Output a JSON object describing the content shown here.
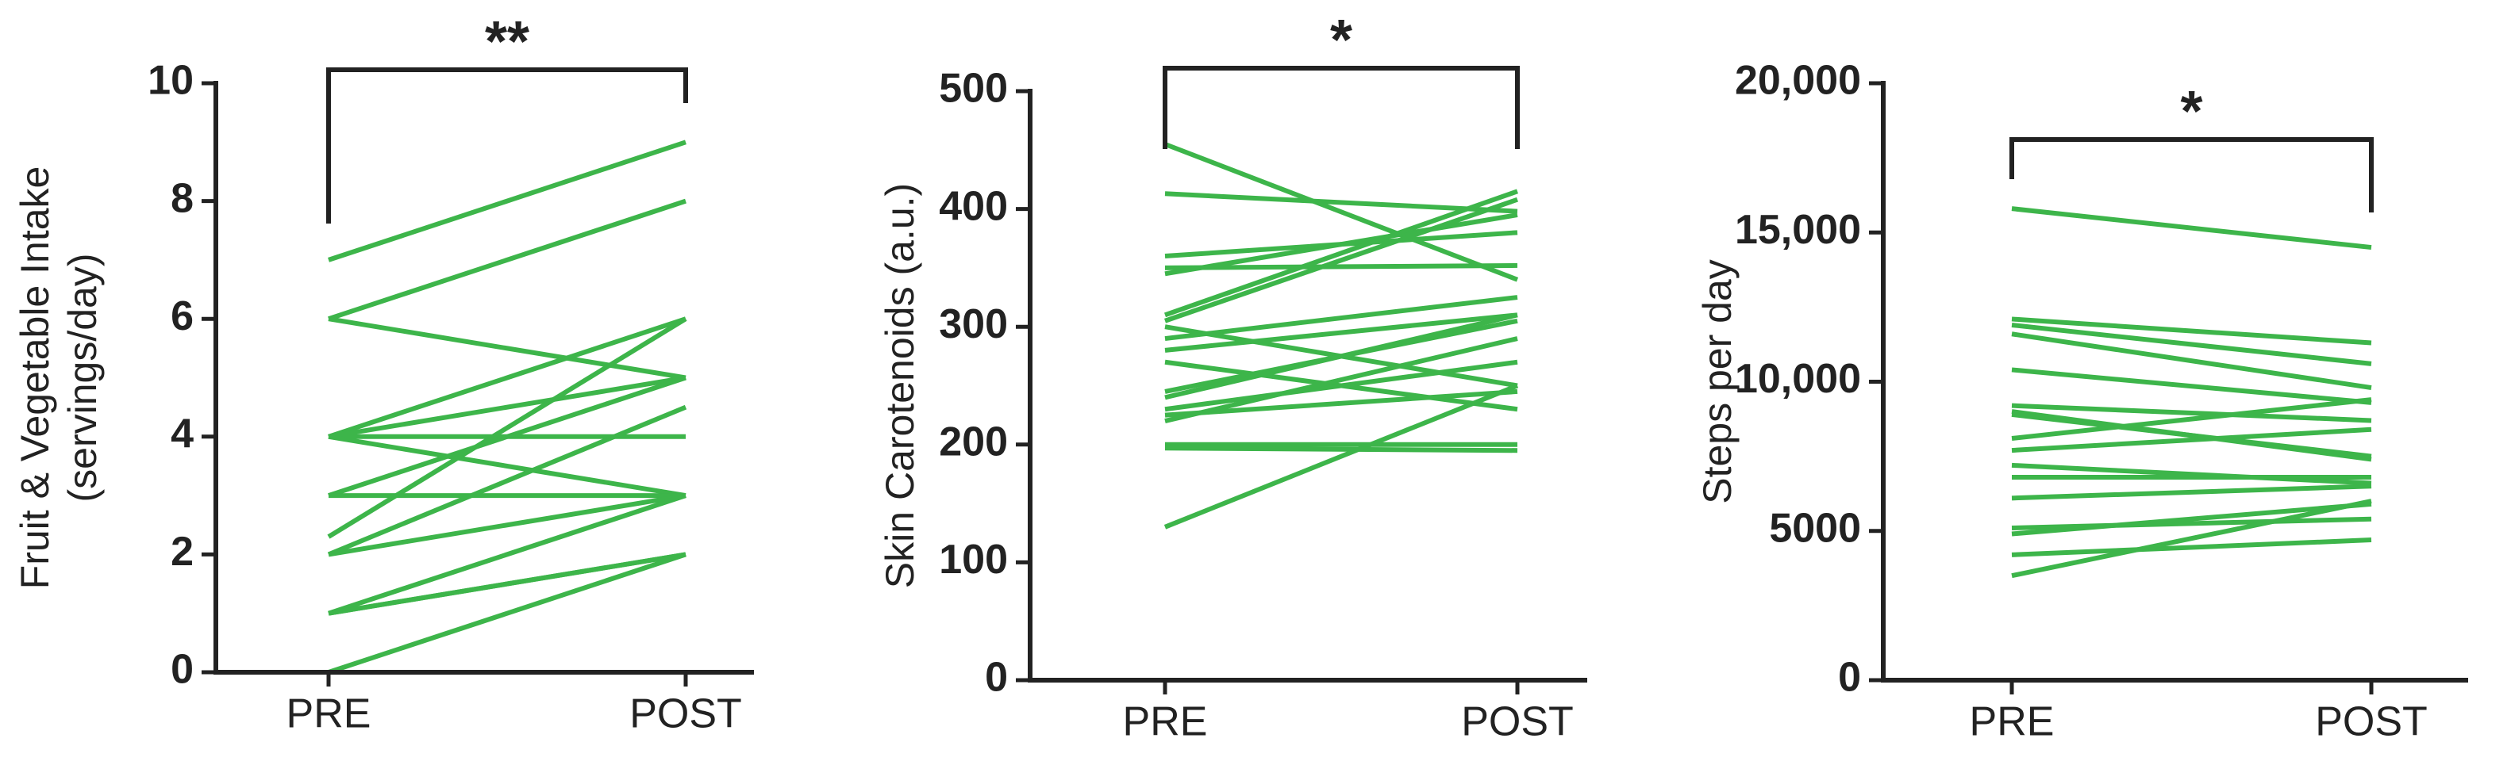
{
  "chart_data": [
    {
      "type": "paired",
      "y_label": [
        "Fruit & Vegetable Intake",
        "(servings/day)"
      ],
      "annotation": "**",
      "categories": [
        "PRE",
        "POST"
      ],
      "color": "#3db54a",
      "ylim": [
        0,
        10
      ],
      "yticks": [
        0,
        2,
        4,
        6,
        8,
        10
      ],
      "series": [
        {
          "values": [
            7,
            9
          ]
        },
        {
          "values": [
            6,
            8
          ]
        },
        {
          "values": [
            6,
            5
          ]
        },
        {
          "values": [
            4,
            6
          ]
        },
        {
          "values": [
            4,
            5
          ]
        },
        {
          "values": [
            4,
            4
          ]
        },
        {
          "values": [
            4,
            3
          ]
        },
        {
          "values": [
            3,
            5
          ]
        },
        {
          "values": [
            3,
            3
          ]
        },
        {
          "values": [
            2.3,
            6
          ]
        },
        {
          "values": [
            2,
            4.5
          ]
        },
        {
          "values": [
            2,
            3
          ]
        },
        {
          "values": [
            1,
            3
          ]
        },
        {
          "values": [
            1,
            2
          ]
        },
        {
          "values": [
            1,
            2
          ]
        },
        {
          "values": [
            0,
            2
          ]
        }
      ]
    },
    {
      "type": "paired",
      "y_label": [
        "Skin Carotenoids (a.u.)"
      ],
      "annotation": "*",
      "categories": [
        "PRE",
        "POST"
      ],
      "color": "#3db54a",
      "ylim": [
        0,
        500
      ],
      "yticks": [
        0,
        100,
        200,
        300,
        400,
        500
      ],
      "series": [
        {
          "values": [
            455,
            340
          ]
        },
        {
          "values": [
            413,
            398
          ]
        },
        {
          "values": [
            360,
            380
          ]
        },
        {
          "values": [
            350,
            352
          ]
        },
        {
          "values": [
            345,
            395
          ]
        },
        {
          "values": [
            310,
            415
          ]
        },
        {
          "values": [
            305,
            408
          ]
        },
        {
          "values": [
            300,
            250
          ]
        },
        {
          "values": [
            290,
            325
          ]
        },
        {
          "values": [
            280,
            310
          ]
        },
        {
          "values": [
            270,
            230
          ]
        },
        {
          "values": [
            245,
            305
          ]
        },
        {
          "values": [
            240,
            310
          ]
        },
        {
          "values": [
            230,
            270
          ]
        },
        {
          "values": [
            225,
            245
          ]
        },
        {
          "values": [
            220,
            290
          ]
        },
        {
          "values": [
            200,
            200
          ]
        },
        {
          "values": [
            197,
            195
          ]
        },
        {
          "values": [
            130,
            250
          ]
        }
      ]
    },
    {
      "type": "paired",
      "y_label": [
        "Steps per day"
      ],
      "annotation": "*",
      "categories": [
        "PRE",
        "POST"
      ],
      "color": "#3db54a",
      "ylim": [
        0,
        20000
      ],
      "yticks": [
        0,
        5000,
        {
          "value": 10000,
          "label": "10,000"
        },
        {
          "value": 15000,
          "label": "15,000"
        },
        {
          "value": 20000,
          "label": "20,000"
        }
      ],
      "series": [
        {
          "values": [
            15800,
            14500
          ]
        },
        {
          "values": [
            12100,
            11300
          ]
        },
        {
          "values": [
            11900,
            10600
          ]
        },
        {
          "values": [
            11600,
            9800
          ]
        },
        {
          "values": [
            10400,
            9300
          ]
        },
        {
          "values": [
            9200,
            8700
          ]
        },
        {
          "values": [
            9000,
            7400
          ]
        },
        {
          "values": [
            8900,
            7500
          ]
        },
        {
          "values": [
            8100,
            9400
          ]
        },
        {
          "values": [
            7700,
            8400
          ]
        },
        {
          "values": [
            7200,
            6600
          ]
        },
        {
          "values": [
            6800,
            6800
          ]
        },
        {
          "values": [
            6100,
            6500
          ]
        },
        {
          "values": [
            5100,
            5400
          ]
        },
        {
          "values": [
            4900,
            5900
          ]
        },
        {
          "values": [
            4200,
            4700
          ]
        },
        {
          "values": [
            3500,
            6000
          ]
        }
      ]
    }
  ]
}
